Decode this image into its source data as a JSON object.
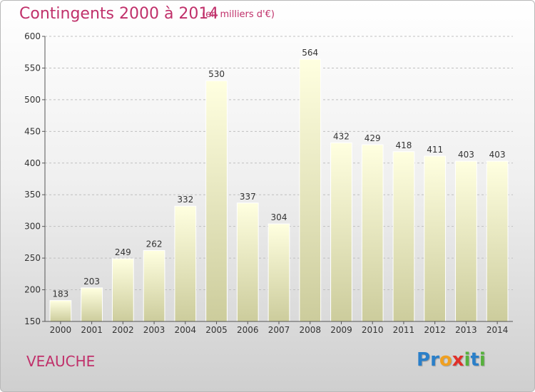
{
  "header": {
    "title": "Contingents 2000 à 2014",
    "subtitle": "(en milliers d'€)"
  },
  "footer": {
    "commune": "VEAUCHE",
    "logo_letters": [
      {
        "ch": "P",
        "color": "#2a7fc9"
      },
      {
        "ch": "r",
        "color": "#2a7fc9"
      },
      {
        "ch": "o",
        "color": "#f0a020"
      },
      {
        "ch": "x",
        "color": "#e0302a"
      },
      {
        "ch": "i",
        "color": "#56b13c"
      },
      {
        "ch": "t",
        "color": "#2a7fc9"
      },
      {
        "ch": "i",
        "color": "#56b13c"
      }
    ]
  },
  "chart_data": {
    "type": "bar",
    "title": "Contingents 2000 à 2014",
    "subtitle": "(en milliers d'€)",
    "categories": [
      "2000",
      "2001",
      "2002",
      "2003",
      "2004",
      "2005",
      "2006",
      "2007",
      "2008",
      "2009",
      "2010",
      "2011",
      "2012",
      "2013",
      "2014"
    ],
    "values": [
      183,
      203,
      249,
      262,
      332,
      530,
      337,
      304,
      564,
      432,
      429,
      418,
      411,
      403,
      403
    ],
    "yticks": [
      150,
      200,
      250,
      300,
      350,
      400,
      450,
      500,
      550,
      600
    ],
    "ylim": [
      150,
      600
    ],
    "grid": true,
    "bar_color_top": "#ffffe0",
    "bar_color_bottom": "#cccc9c"
  }
}
